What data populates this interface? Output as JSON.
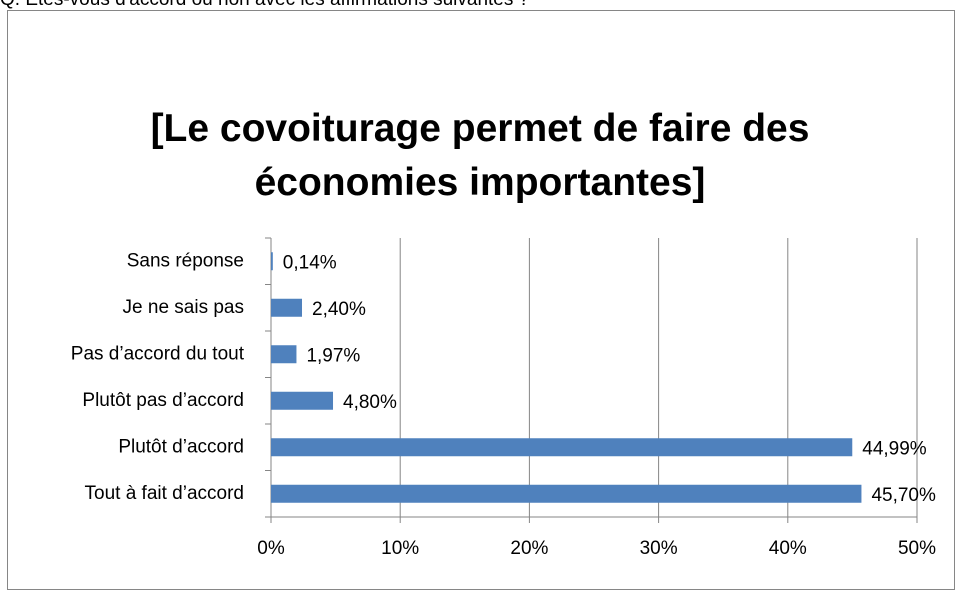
{
  "header": "Q. Etes-vous d'accord ou non avec les affirmations suivantes ?",
  "chart_data": {
    "type": "bar",
    "orientation": "horizontal",
    "title": "[Le covoiturage permet de faire des économies importantes]",
    "categories": [
      "Sans réponse",
      "Je ne sais pas",
      "Pas d’accord du tout",
      "Plutôt pas d’accord",
      "Plutôt d’accord",
      "Tout à fait d’accord"
    ],
    "values": [
      0.14,
      2.4,
      1.97,
      4.8,
      44.99,
      45.7
    ],
    "value_labels": [
      "0,14%",
      "2,40%",
      "1,97%",
      "4,80%",
      "44,99%",
      "45,70%"
    ],
    "color": "#4f81bd",
    "xlim": [
      0,
      50
    ],
    "xticks": [
      {
        "value": 0,
        "label": "0%"
      },
      {
        "value": 10,
        "label": "10%"
      },
      {
        "value": 20,
        "label": "20%"
      },
      {
        "value": 30,
        "label": "30%"
      },
      {
        "value": 40,
        "label": "40%"
      },
      {
        "value": 50,
        "label": "50%"
      }
    ],
    "grid": true
  }
}
